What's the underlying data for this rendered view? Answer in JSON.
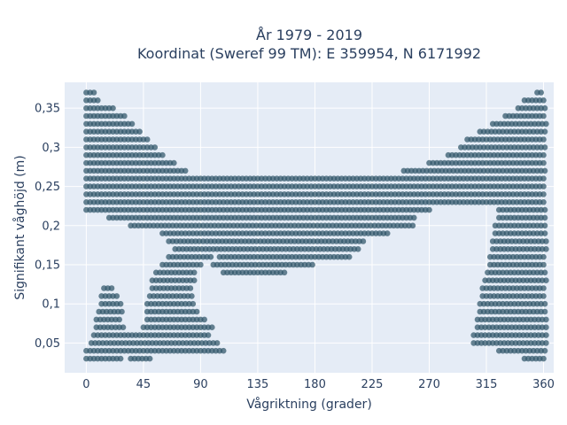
{
  "chart_data": {
    "type": "scatter",
    "title_line1": "År 1979 - 2019",
    "title_line2": "Koordinat (Sweref 99 TM): E 359954, N 6171992",
    "xlabel": "Vågriktning (grader)",
    "ylabel": "Signifikant våghöjd (m)",
    "xlim": [
      -17,
      368
    ],
    "ylim": [
      0.012,
      0.383
    ],
    "x_ticks": [
      0,
      45,
      90,
      135,
      180,
      225,
      270,
      315,
      360
    ],
    "x_tick_labels": [
      "0",
      "45",
      "90",
      "135",
      "180",
      "225",
      "270",
      "315",
      "360"
    ],
    "y_ticks": [
      0.05,
      0.1,
      0.15,
      0.2,
      0.25,
      0.3,
      0.35
    ],
    "y_tick_labels": [
      "0,05",
      "0,1",
      "0,15",
      "0,2",
      "0,25",
      "0,3",
      "0,35"
    ],
    "grid": true,
    "marker_color": "#2f5468",
    "background_color": "#e5ecf6",
    "y_step": 0.01,
    "x_step": 3,
    "bands": [
      {
        "y": 0.03,
        "segments": [
          [
            0,
            28
          ],
          [
            35,
            52
          ],
          [
            345,
            362
          ]
        ]
      },
      {
        "y": 0.04,
        "segments": [
          [
            0,
            110
          ],
          [
            325,
            362
          ]
        ]
      },
      {
        "y": 0.05,
        "segments": [
          [
            4,
            105
          ],
          [
            305,
            362
          ]
        ]
      },
      {
        "y": 0.06,
        "segments": [
          [
            6,
            98
          ],
          [
            305,
            362
          ]
        ]
      },
      {
        "y": 0.07,
        "segments": [
          [
            8,
            30
          ],
          [
            45,
            100
          ],
          [
            308,
            362
          ]
        ]
      },
      {
        "y": 0.08,
        "segments": [
          [
            8,
            28
          ],
          [
            48,
            95
          ],
          [
            308,
            362
          ]
        ]
      },
      {
        "y": 0.09,
        "segments": [
          [
            10,
            28
          ],
          [
            48,
            88
          ],
          [
            310,
            362
          ]
        ]
      },
      {
        "y": 0.1,
        "segments": [
          [
            12,
            28
          ],
          [
            48,
            85
          ],
          [
            310,
            362
          ]
        ]
      },
      {
        "y": 0.11,
        "segments": [
          [
            12,
            26
          ],
          [
            50,
            85
          ],
          [
            312,
            362
          ]
        ]
      },
      {
        "y": 0.12,
        "segments": [
          [
            14,
            22
          ],
          [
            52,
            83
          ],
          [
            312,
            362
          ]
        ]
      },
      {
        "y": 0.13,
        "segments": [
          [
            52,
            85
          ],
          [
            314,
            362
          ]
        ]
      },
      {
        "y": 0.14,
        "segments": [
          [
            55,
            86
          ],
          [
            108,
            158
          ],
          [
            316,
            362
          ]
        ]
      },
      {
        "y": 0.15,
        "segments": [
          [
            60,
            92
          ],
          [
            100,
            178
          ],
          [
            318,
            362
          ]
        ]
      },
      {
        "y": 0.16,
        "segments": [
          [
            65,
            100
          ],
          [
            105,
            208
          ],
          [
            318,
            362
          ]
        ]
      },
      {
        "y": 0.17,
        "segments": [
          [
            70,
            215
          ],
          [
            320,
            362
          ]
        ]
      },
      {
        "y": 0.18,
        "segments": [
          [
            65,
            220
          ],
          [
            320,
            362
          ]
        ]
      },
      {
        "y": 0.19,
        "segments": [
          [
            60,
            238
          ],
          [
            322,
            362
          ]
        ]
      },
      {
        "y": 0.2,
        "segments": [
          [
            35,
            258
          ],
          [
            322,
            362
          ]
        ]
      },
      {
        "y": 0.21,
        "segments": [
          [
            18,
            258
          ],
          [
            325,
            362
          ]
        ]
      },
      {
        "y": 0.22,
        "segments": [
          [
            0,
            270
          ],
          [
            325,
            362
          ]
        ]
      },
      {
        "y": 0.23,
        "segments": [
          [
            0,
            362
          ]
        ]
      },
      {
        "y": 0.24,
        "segments": [
          [
            0,
            362
          ]
        ]
      },
      {
        "y": 0.25,
        "segments": [
          [
            0,
            362
          ]
        ]
      },
      {
        "y": 0.26,
        "segments": [
          [
            0,
            362
          ]
        ]
      },
      {
        "y": 0.27,
        "segments": [
          [
            0,
            80
          ],
          [
            250,
            362
          ]
        ]
      },
      {
        "y": 0.28,
        "segments": [
          [
            0,
            70
          ],
          [
            270,
            362
          ]
        ]
      },
      {
        "y": 0.29,
        "segments": [
          [
            0,
            60
          ],
          [
            285,
            362
          ]
        ]
      },
      {
        "y": 0.3,
        "segments": [
          [
            0,
            55
          ],
          [
            295,
            362
          ]
        ]
      },
      {
        "y": 0.31,
        "segments": [
          [
            0,
            48
          ],
          [
            300,
            362
          ]
        ]
      },
      {
        "y": 0.32,
        "segments": [
          [
            0,
            42
          ],
          [
            310,
            362
          ]
        ]
      },
      {
        "y": 0.33,
        "segments": [
          [
            0,
            36
          ],
          [
            320,
            362
          ]
        ]
      },
      {
        "y": 0.34,
        "segments": [
          [
            0,
            30
          ],
          [
            330,
            362
          ]
        ]
      },
      {
        "y": 0.35,
        "segments": [
          [
            0,
            22
          ],
          [
            340,
            362
          ]
        ]
      },
      {
        "y": 0.36,
        "segments": [
          [
            0,
            10
          ],
          [
            345,
            362
          ]
        ]
      },
      {
        "y": 0.37,
        "segments": [
          [
            0,
            8
          ],
          [
            355,
            360
          ]
        ]
      }
    ]
  }
}
